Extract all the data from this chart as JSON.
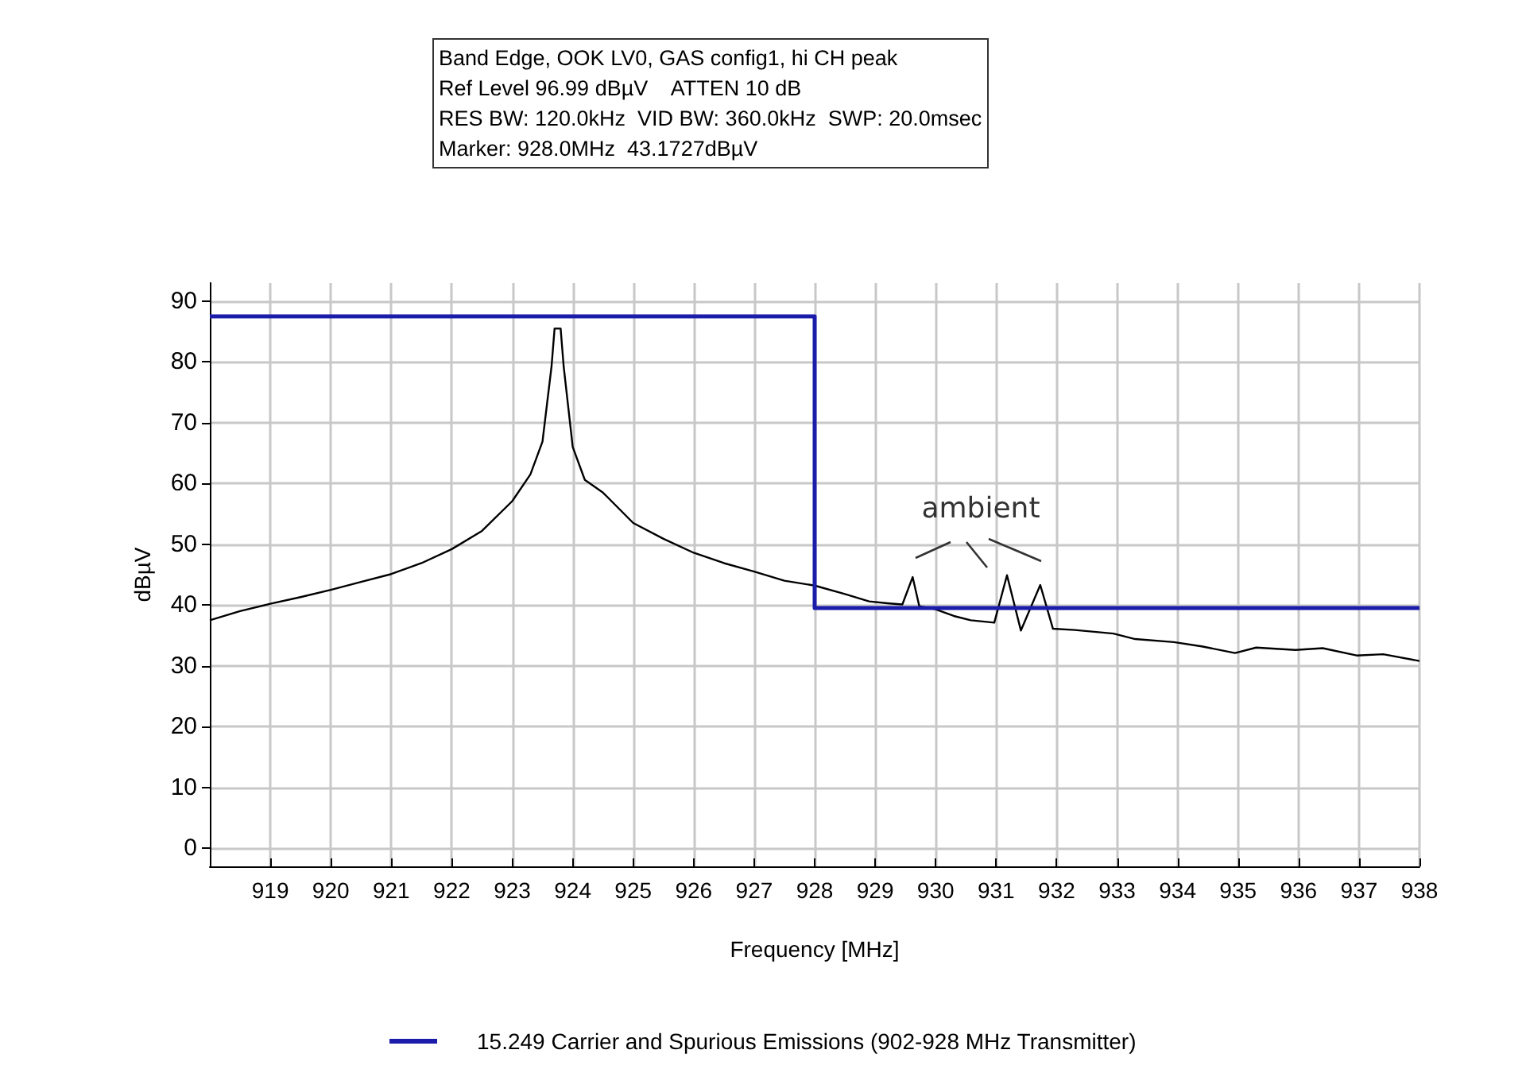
{
  "chart_data": {
    "type": "line",
    "xlabel": "Frequency [MHz]",
    "ylabel": "dBµV",
    "annotations": [
      "Band Edge, OOK LV0, GAS config1, hi CH peak",
      "Ref Level 96.99 dBµV    ATTEN 10 dB",
      "RES BW: 120.0kHz  VID BW: 360.0kHz  SWP: 20.0msec",
      "Marker: 928.0MHz  43.1727dBµV",
      "ambient"
    ],
    "xlim": [
      918,
      938
    ],
    "xticks": [
      919,
      920,
      921,
      922,
      923,
      924,
      925,
      926,
      927,
      928,
      929,
      930,
      931,
      932,
      933,
      934,
      935,
      936,
      937,
      938
    ],
    "ylim": [
      -3,
      93
    ],
    "yticks": [
      0,
      10,
      20,
      30,
      40,
      50,
      60,
      70,
      80,
      90
    ],
    "grid": true,
    "legend": "bottom",
    "marker": "none",
    "line_style": "solid",
    "series": [
      {
        "color": "#000000",
        "x": [
          918,
          918.5,
          919,
          919.5,
          920,
          920.5,
          921,
          921.5,
          922,
          922.5,
          923,
          923.3,
          923.5,
          923.65,
          923.7,
          923.8,
          923.85,
          924,
          924.2,
          924.5,
          925,
          925.5,
          926,
          926.5,
          927,
          927.5,
          928,
          928.5,
          928.9,
          929.2,
          929.45,
          929.62,
          929.73,
          930,
          930.3,
          930.58,
          930.97,
          931.18,
          931.41,
          931.73,
          931.94,
          932.3,
          932.94,
          933.3,
          933.94,
          934.4,
          934.95,
          935.3,
          935.95,
          936.4,
          936.96,
          937.4,
          938
        ],
        "values": [
          37.5,
          39,
          40.2,
          41.3,
          42.5,
          43.8,
          45.1,
          46.9,
          49.2,
          52.2,
          57.1,
          61.5,
          66.9,
          79.3,
          85.5,
          85.5,
          79.3,
          66,
          60.6,
          58.5,
          53.5,
          50.9,
          48.6,
          46.9,
          45.5,
          44,
          43.2,
          41.8,
          40.6,
          40.3,
          40.1,
          44.6,
          39.8,
          39.3,
          38.2,
          37.5,
          37.1,
          44.9,
          35.8,
          43.3,
          36.1,
          35.9,
          35.3,
          34.4,
          33.9,
          33.2,
          32.1,
          33,
          32.6,
          32.9,
          31.7,
          31.9,
          30.8
        ]
      },
      {
        "name": "15.249 Carrier and Spurious Emissions (902-928 MHz Transmitter)",
        "type": "step",
        "color": "#1c1caa",
        "x": [
          918,
          928,
          938
        ],
        "values": [
          87.5,
          39.5,
          39.5
        ]
      }
    ]
  }
}
